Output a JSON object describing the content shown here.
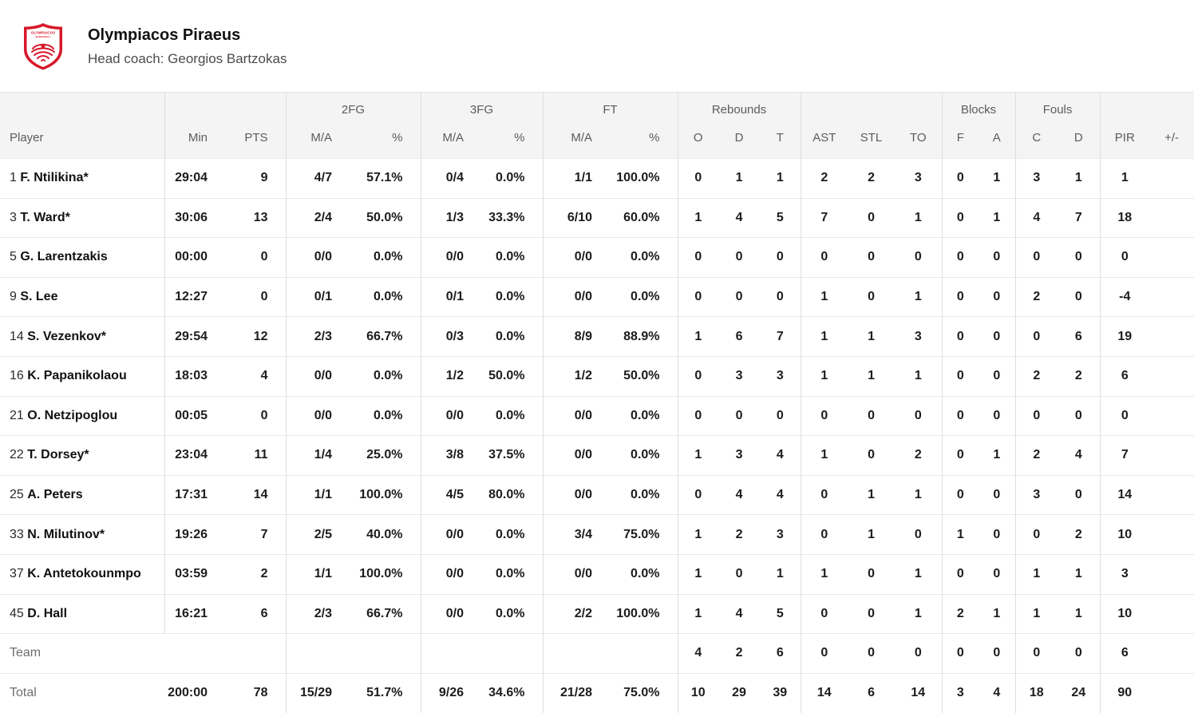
{
  "header": {
    "team_name": "Olympiacos Piraeus",
    "coach_line": "Head coach: Georgios Bartzokas",
    "logo_colors": {
      "red": "#d7182a",
      "white": "#ffffff"
    }
  },
  "table": {
    "header_groups": [
      {
        "label": ""
      },
      {
        "label": ""
      },
      {
        "label": "2FG"
      },
      {
        "label": "3FG"
      },
      {
        "label": "FT"
      },
      {
        "label": "Rebounds"
      },
      {
        "label": ""
      },
      {
        "label": "Blocks"
      },
      {
        "label": "Fouls"
      },
      {
        "label": ""
      }
    ],
    "columns": [
      {
        "key": "player",
        "label": "Player"
      },
      {
        "key": "min",
        "label": "Min"
      },
      {
        "key": "pts",
        "label": "PTS"
      },
      {
        "key": "fg2_ma",
        "label": "M/A"
      },
      {
        "key": "fg2_pct",
        "label": "%"
      },
      {
        "key": "fg3_ma",
        "label": "M/A"
      },
      {
        "key": "fg3_pct",
        "label": "%"
      },
      {
        "key": "ft_ma",
        "label": "M/A"
      },
      {
        "key": "ft_pct",
        "label": "%"
      },
      {
        "key": "reb_o",
        "label": "O"
      },
      {
        "key": "reb_d",
        "label": "D"
      },
      {
        "key": "reb_t",
        "label": "T"
      },
      {
        "key": "ast",
        "label": "AST"
      },
      {
        "key": "stl",
        "label": "STL"
      },
      {
        "key": "to",
        "label": "TO"
      },
      {
        "key": "blk_f",
        "label": "F"
      },
      {
        "key": "blk_a",
        "label": "A"
      },
      {
        "key": "foul_c",
        "label": "C"
      },
      {
        "key": "foul_d",
        "label": "D"
      },
      {
        "key": "pir",
        "label": "PIR"
      },
      {
        "key": "pm",
        "label": "+/-"
      }
    ],
    "rows": [
      {
        "number": "1",
        "name": "F. Ntilikina*",
        "min": "29:04",
        "pts": "9",
        "fg2_ma": "4/7",
        "fg2_pct": "57.1%",
        "fg3_ma": "0/4",
        "fg3_pct": "0.0%",
        "ft_ma": "1/1",
        "ft_pct": "100.0%",
        "reb_o": "0",
        "reb_d": "1",
        "reb_t": "1",
        "ast": "2",
        "stl": "2",
        "to": "3",
        "blk_f": "0",
        "blk_a": "1",
        "foul_c": "3",
        "foul_d": "1",
        "pir": "1",
        "pm": ""
      },
      {
        "number": "3",
        "name": "T. Ward*",
        "min": "30:06",
        "pts": "13",
        "fg2_ma": "2/4",
        "fg2_pct": "50.0%",
        "fg3_ma": "1/3",
        "fg3_pct": "33.3%",
        "ft_ma": "6/10",
        "ft_pct": "60.0%",
        "reb_o": "1",
        "reb_d": "4",
        "reb_t": "5",
        "ast": "7",
        "stl": "0",
        "to": "1",
        "blk_f": "0",
        "blk_a": "1",
        "foul_c": "4",
        "foul_d": "7",
        "pir": "18",
        "pm": ""
      },
      {
        "number": "5",
        "name": "G. Larentzakis",
        "min": "00:00",
        "pts": "0",
        "fg2_ma": "0/0",
        "fg2_pct": "0.0%",
        "fg3_ma": "0/0",
        "fg3_pct": "0.0%",
        "ft_ma": "0/0",
        "ft_pct": "0.0%",
        "reb_o": "0",
        "reb_d": "0",
        "reb_t": "0",
        "ast": "0",
        "stl": "0",
        "to": "0",
        "blk_f": "0",
        "blk_a": "0",
        "foul_c": "0",
        "foul_d": "0",
        "pir": "0",
        "pm": ""
      },
      {
        "number": "9",
        "name": "S. Lee",
        "min": "12:27",
        "pts": "0",
        "fg2_ma": "0/1",
        "fg2_pct": "0.0%",
        "fg3_ma": "0/1",
        "fg3_pct": "0.0%",
        "ft_ma": "0/0",
        "ft_pct": "0.0%",
        "reb_o": "0",
        "reb_d": "0",
        "reb_t": "0",
        "ast": "1",
        "stl": "0",
        "to": "1",
        "blk_f": "0",
        "blk_a": "0",
        "foul_c": "2",
        "foul_d": "0",
        "pir": "-4",
        "pm": ""
      },
      {
        "number": "14",
        "name": "S. Vezenkov*",
        "min": "29:54",
        "pts": "12",
        "fg2_ma": "2/3",
        "fg2_pct": "66.7%",
        "fg3_ma": "0/3",
        "fg3_pct": "0.0%",
        "ft_ma": "8/9",
        "ft_pct": "88.9%",
        "reb_o": "1",
        "reb_d": "6",
        "reb_t": "7",
        "ast": "1",
        "stl": "1",
        "to": "3",
        "blk_f": "0",
        "blk_a": "0",
        "foul_c": "0",
        "foul_d": "6",
        "pir": "19",
        "pm": ""
      },
      {
        "number": "16",
        "name": "K. Papanikolaou",
        "min": "18:03",
        "pts": "4",
        "fg2_ma": "0/0",
        "fg2_pct": "0.0%",
        "fg3_ma": "1/2",
        "fg3_pct": "50.0%",
        "ft_ma": "1/2",
        "ft_pct": "50.0%",
        "reb_o": "0",
        "reb_d": "3",
        "reb_t": "3",
        "ast": "1",
        "stl": "1",
        "to": "1",
        "blk_f": "0",
        "blk_a": "0",
        "foul_c": "2",
        "foul_d": "2",
        "pir": "6",
        "pm": ""
      },
      {
        "number": "21",
        "name": "O. Netzipoglou",
        "min": "00:05",
        "pts": "0",
        "fg2_ma": "0/0",
        "fg2_pct": "0.0%",
        "fg3_ma": "0/0",
        "fg3_pct": "0.0%",
        "ft_ma": "0/0",
        "ft_pct": "0.0%",
        "reb_o": "0",
        "reb_d": "0",
        "reb_t": "0",
        "ast": "0",
        "stl": "0",
        "to": "0",
        "blk_f": "0",
        "blk_a": "0",
        "foul_c": "0",
        "foul_d": "0",
        "pir": "0",
        "pm": ""
      },
      {
        "number": "22",
        "name": "T. Dorsey*",
        "min": "23:04",
        "pts": "11",
        "fg2_ma": "1/4",
        "fg2_pct": "25.0%",
        "fg3_ma": "3/8",
        "fg3_pct": "37.5%",
        "ft_ma": "0/0",
        "ft_pct": "0.0%",
        "reb_o": "1",
        "reb_d": "3",
        "reb_t": "4",
        "ast": "1",
        "stl": "0",
        "to": "2",
        "blk_f": "0",
        "blk_a": "1",
        "foul_c": "2",
        "foul_d": "4",
        "pir": "7",
        "pm": ""
      },
      {
        "number": "25",
        "name": "A. Peters",
        "min": "17:31",
        "pts": "14",
        "fg2_ma": "1/1",
        "fg2_pct": "100.0%",
        "fg3_ma": "4/5",
        "fg3_pct": "80.0%",
        "ft_ma": "0/0",
        "ft_pct": "0.0%",
        "reb_o": "0",
        "reb_d": "4",
        "reb_t": "4",
        "ast": "0",
        "stl": "1",
        "to": "1",
        "blk_f": "0",
        "blk_a": "0",
        "foul_c": "3",
        "foul_d": "0",
        "pir": "14",
        "pm": ""
      },
      {
        "number": "33",
        "name": "N. Milutinov*",
        "min": "19:26",
        "pts": "7",
        "fg2_ma": "2/5",
        "fg2_pct": "40.0%",
        "fg3_ma": "0/0",
        "fg3_pct": "0.0%",
        "ft_ma": "3/4",
        "ft_pct": "75.0%",
        "reb_o": "1",
        "reb_d": "2",
        "reb_t": "3",
        "ast": "0",
        "stl": "1",
        "to": "0",
        "blk_f": "1",
        "blk_a": "0",
        "foul_c": "0",
        "foul_d": "2",
        "pir": "10",
        "pm": ""
      },
      {
        "number": "37",
        "name": "K. Antetokounmpo",
        "min": "03:59",
        "pts": "2",
        "fg2_ma": "1/1",
        "fg2_pct": "100.0%",
        "fg3_ma": "0/0",
        "fg3_pct": "0.0%",
        "ft_ma": "0/0",
        "ft_pct": "0.0%",
        "reb_o": "1",
        "reb_d": "0",
        "reb_t": "1",
        "ast": "1",
        "stl": "0",
        "to": "1",
        "blk_f": "0",
        "blk_a": "0",
        "foul_c": "1",
        "foul_d": "1",
        "pir": "3",
        "pm": ""
      },
      {
        "number": "45",
        "name": "D. Hall",
        "min": "16:21",
        "pts": "6",
        "fg2_ma": "2/3",
        "fg2_pct": "66.7%",
        "fg3_ma": "0/0",
        "fg3_pct": "0.0%",
        "ft_ma": "2/2",
        "ft_pct": "100.0%",
        "reb_o": "1",
        "reb_d": "4",
        "reb_t": "5",
        "ast": "0",
        "stl": "0",
        "to": "1",
        "blk_f": "2",
        "blk_a": "1",
        "foul_c": "1",
        "foul_d": "1",
        "pir": "10",
        "pm": ""
      }
    ],
    "team_row": {
      "label": "Team",
      "min": "",
      "pts": "",
      "fg2_ma": "",
      "fg2_pct": "",
      "fg3_ma": "",
      "fg3_pct": "",
      "ft_ma": "",
      "ft_pct": "",
      "reb_o": "4",
      "reb_d": "2",
      "reb_t": "6",
      "ast": "0",
      "stl": "0",
      "to": "0",
      "blk_f": "0",
      "blk_a": "0",
      "foul_c": "0",
      "foul_d": "0",
      "pir": "6",
      "pm": ""
    },
    "total_row": {
      "label": "Total",
      "min": "200:00",
      "pts": "78",
      "fg2_ma": "15/29",
      "fg2_pct": "51.7%",
      "fg3_ma": "9/26",
      "fg3_pct": "34.6%",
      "ft_ma": "21/28",
      "ft_pct": "75.0%",
      "reb_o": "10",
      "reb_d": "29",
      "reb_t": "39",
      "ast": "14",
      "stl": "6",
      "to": "14",
      "blk_f": "3",
      "blk_a": "4",
      "foul_c": "18",
      "foul_d": "24",
      "pir": "90",
      "pm": ""
    }
  }
}
